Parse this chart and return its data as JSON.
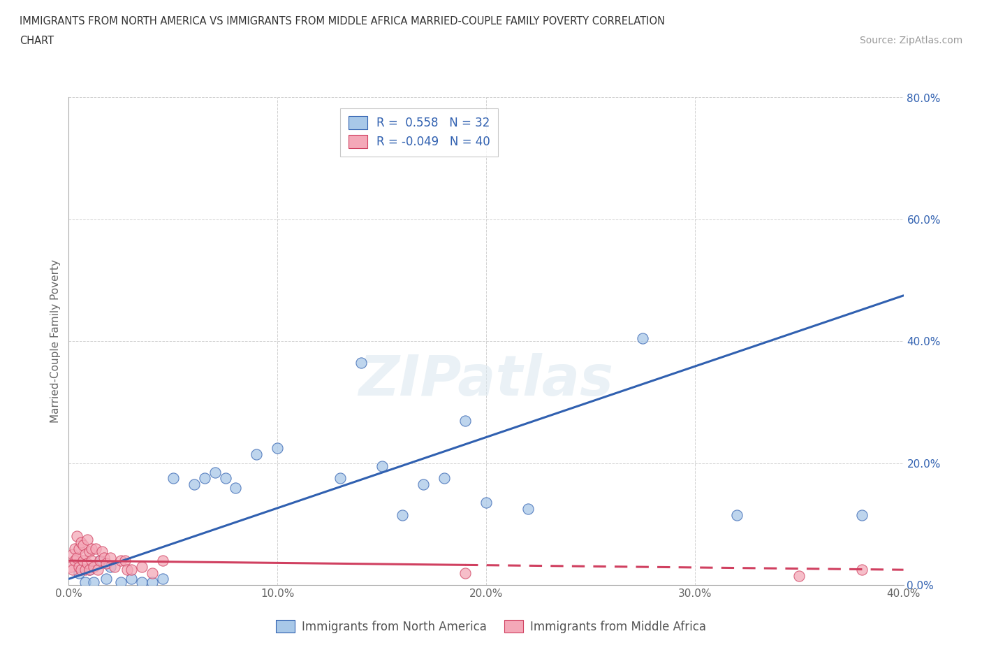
{
  "title_line1": "IMMIGRANTS FROM NORTH AMERICA VS IMMIGRANTS FROM MIDDLE AFRICA MARRIED-COUPLE FAMILY POVERTY CORRELATION",
  "title_line2": "CHART",
  "source_text": "Source: ZipAtlas.com",
  "xlabel": "Immigrants from North America",
  "xlabel2": "Immigrants from Middle Africa",
  "ylabel": "Married-Couple Family Poverty",
  "r1": 0.558,
  "n1": 32,
  "r2": -0.049,
  "n2": 40,
  "color1": "#a8c8e8",
  "color2": "#f4a8b8",
  "trendline1_color": "#3060b0",
  "trendline2_color": "#d04060",
  "xlim": [
    0.0,
    0.4
  ],
  "ylim": [
    0.0,
    0.8
  ],
  "xticks": [
    0.0,
    0.1,
    0.2,
    0.3,
    0.4
  ],
  "yticks": [
    0.0,
    0.2,
    0.4,
    0.6,
    0.8
  ],
  "xticklabels": [
    "0.0%",
    "10.0%",
    "20.0%",
    "30.0%",
    "40.0%"
  ],
  "yticklabels": [
    "0.0%",
    "20.0%",
    "40.0%",
    "60.0%",
    "80.0%"
  ],
  "watermark": "ZIPatlas",
  "background_color": "#ffffff",
  "grid_color": "#cccccc",
  "scatter1_x": [
    0.005,
    0.008,
    0.01,
    0.012,
    0.015,
    0.018,
    0.02,
    0.025,
    0.03,
    0.035,
    0.04,
    0.045,
    0.05,
    0.06,
    0.065,
    0.07,
    0.075,
    0.08,
    0.09,
    0.1,
    0.13,
    0.15,
    0.17,
    0.18,
    0.2,
    0.22,
    0.19,
    0.14,
    0.16,
    0.275,
    0.32,
    0.38
  ],
  "scatter1_y": [
    0.02,
    0.005,
    0.025,
    0.005,
    0.04,
    0.01,
    0.03,
    0.005,
    0.01,
    0.005,
    0.005,
    0.01,
    0.175,
    0.165,
    0.175,
    0.185,
    0.175,
    0.16,
    0.215,
    0.225,
    0.175,
    0.195,
    0.165,
    0.175,
    0.135,
    0.125,
    0.27,
    0.365,
    0.115,
    0.405,
    0.115,
    0.115
  ],
  "scatter2_x": [
    0.001,
    0.002,
    0.002,
    0.003,
    0.003,
    0.004,
    0.004,
    0.005,
    0.005,
    0.006,
    0.006,
    0.007,
    0.007,
    0.008,
    0.008,
    0.009,
    0.009,
    0.01,
    0.01,
    0.011,
    0.011,
    0.012,
    0.013,
    0.014,
    0.015,
    0.016,
    0.017,
    0.018,
    0.02,
    0.022,
    0.025,
    0.027,
    0.028,
    0.03,
    0.035,
    0.04,
    0.045,
    0.19,
    0.35,
    0.38
  ],
  "scatter2_y": [
    0.03,
    0.025,
    0.05,
    0.04,
    0.06,
    0.045,
    0.08,
    0.03,
    0.06,
    0.025,
    0.07,
    0.04,
    0.065,
    0.025,
    0.05,
    0.035,
    0.075,
    0.025,
    0.055,
    0.04,
    0.06,
    0.03,
    0.06,
    0.025,
    0.04,
    0.055,
    0.045,
    0.035,
    0.045,
    0.03,
    0.04,
    0.04,
    0.025,
    0.025,
    0.03,
    0.02,
    0.04,
    0.02,
    0.015,
    0.025
  ],
  "trendline1_x0": 0.0,
  "trendline1_y0": 0.01,
  "trendline1_x1": 0.4,
  "trendline1_y1": 0.475,
  "trendline2_x0": 0.0,
  "trendline2_y0": 0.04,
  "trendline2_x1": 0.4,
  "trendline2_y1": 0.025,
  "trendline2_solid_end": 0.19,
  "trendline2_dashed_start": 0.19
}
